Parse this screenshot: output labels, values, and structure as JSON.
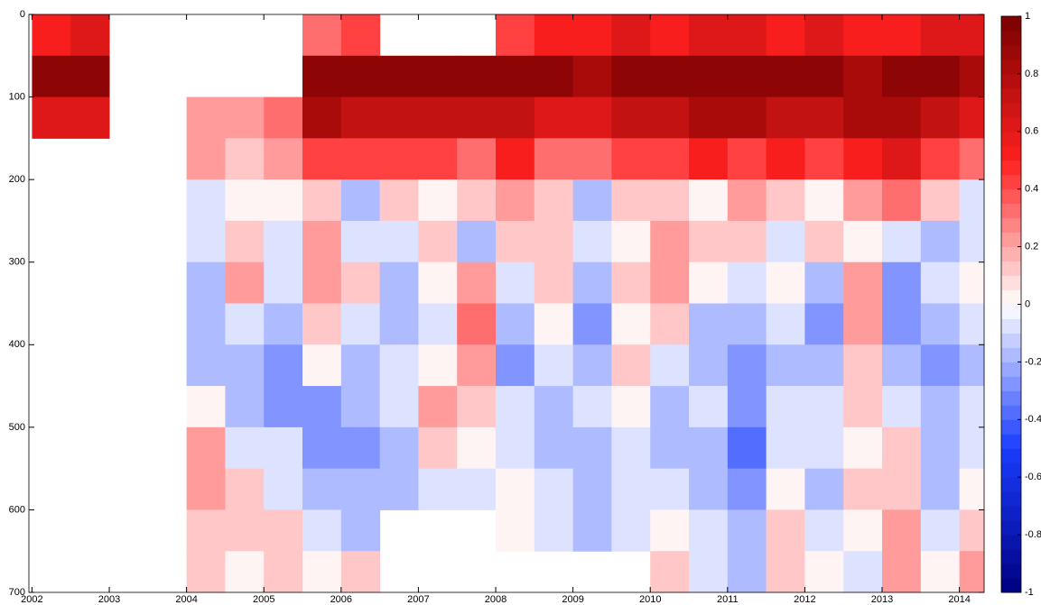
{
  "chart_data": {
    "type": "heatmap",
    "x_edges": [
      2002,
      2002.5,
      2003,
      2003.5,
      2004,
      2004.5,
      2005,
      2005.5,
      2006,
      2006.5,
      2007,
      2007.5,
      2008,
      2008.5,
      2009,
      2009.5,
      2010,
      2010.5,
      2011,
      2011.5,
      2012,
      2012.5,
      2013,
      2013.5,
      2014,
      2014.32
    ],
    "y_edges": [
      0,
      50,
      100,
      150,
      200,
      250,
      300,
      350,
      400,
      450,
      500,
      550,
      600,
      650,
      700
    ],
    "z": [
      [
        0.5,
        0.6,
        null,
        null,
        null,
        null,
        null,
        0.3,
        0.4,
        null,
        null,
        null,
        0.4,
        0.5,
        0.5,
        0.6,
        0.5,
        0.6,
        0.6,
        0.5,
        0.6,
        0.5,
        0.5,
        0.6,
        0.6
      ],
      [
        0.9,
        0.9,
        null,
        null,
        null,
        null,
        null,
        0.9,
        0.9,
        0.9,
        0.9,
        0.9,
        0.9,
        0.9,
        0.8,
        0.9,
        0.9,
        0.9,
        0.9,
        0.9,
        0.9,
        0.8,
        0.9,
        0.9,
        0.8
      ],
      [
        0.6,
        0.6,
        null,
        null,
        0.2,
        0.2,
        0.3,
        0.8,
        0.7,
        0.7,
        0.7,
        0.7,
        0.7,
        0.6,
        0.6,
        0.7,
        0.7,
        0.8,
        0.8,
        0.7,
        0.7,
        0.8,
        0.8,
        0.7,
        0.6
      ],
      [
        null,
        null,
        null,
        null,
        0.2,
        0.1,
        0.2,
        0.4,
        0.4,
        0.4,
        0.4,
        0.3,
        0.5,
        0.3,
        0.3,
        0.4,
        0.4,
        0.5,
        0.4,
        0.5,
        0.4,
        0.5,
        0.6,
        0.4,
        0.3
      ],
      [
        null,
        null,
        null,
        null,
        -0.1,
        0.0,
        0.0,
        0.1,
        -0.2,
        0.1,
        0.0,
        0.1,
        0.2,
        0.1,
        -0.2,
        0.1,
        0.1,
        0.0,
        0.2,
        0.1,
        0.0,
        0.2,
        0.3,
        0.1,
        -0.1
      ],
      [
        null,
        null,
        null,
        null,
        -0.1,
        0.1,
        -0.1,
        0.2,
        -0.1,
        -0.1,
        0.1,
        -0.2,
        0.1,
        0.1,
        -0.1,
        0.0,
        0.2,
        0.1,
        0.1,
        -0.1,
        0.1,
        0.0,
        -0.1,
        -0.2,
        -0.1
      ],
      [
        null,
        null,
        null,
        null,
        -0.2,
        0.2,
        -0.1,
        0.2,
        0.1,
        -0.2,
        0.0,
        0.2,
        -0.1,
        0.1,
        -0.2,
        0.1,
        0.2,
        0.0,
        -0.1,
        0.0,
        -0.2,
        0.2,
        -0.3,
        -0.1,
        0.0
      ],
      [
        null,
        null,
        null,
        null,
        -0.2,
        -0.1,
        -0.2,
        0.1,
        -0.1,
        -0.2,
        -0.1,
        0.3,
        -0.2,
        0.0,
        -0.3,
        0.0,
        0.1,
        -0.2,
        -0.2,
        -0.1,
        -0.3,
        0.2,
        -0.3,
        -0.2,
        -0.1
      ],
      [
        null,
        null,
        null,
        null,
        -0.2,
        -0.2,
        -0.3,
        0.0,
        -0.2,
        -0.1,
        0.0,
        0.2,
        -0.3,
        -0.1,
        -0.2,
        0.1,
        -0.1,
        -0.2,
        -0.3,
        -0.2,
        -0.2,
        0.1,
        -0.2,
        -0.3,
        -0.2
      ],
      [
        null,
        null,
        null,
        null,
        0.0,
        -0.2,
        -0.3,
        -0.3,
        -0.2,
        -0.1,
        0.2,
        0.1,
        -0.1,
        -0.2,
        -0.1,
        0.0,
        -0.2,
        -0.1,
        -0.3,
        -0.1,
        -0.1,
        0.1,
        -0.1,
        -0.2,
        -0.1
      ],
      [
        null,
        null,
        null,
        null,
        0.2,
        -0.1,
        -0.1,
        -0.3,
        -0.3,
        -0.2,
        0.1,
        0.0,
        -0.1,
        -0.2,
        -0.2,
        -0.1,
        -0.2,
        -0.2,
        -0.4,
        -0.1,
        -0.1,
        0.0,
        0.1,
        -0.2,
        -0.1
      ],
      [
        null,
        null,
        null,
        null,
        0.2,
        0.1,
        -0.1,
        -0.2,
        -0.2,
        -0.2,
        -0.1,
        -0.1,
        0.0,
        -0.1,
        -0.2,
        -0.1,
        -0.1,
        -0.2,
        -0.3,
        0.0,
        -0.2,
        0.1,
        0.1,
        -0.2,
        0.0
      ],
      [
        null,
        null,
        null,
        null,
        0.1,
        0.1,
        0.1,
        -0.1,
        -0.2,
        null,
        null,
        null,
        0.0,
        -0.1,
        -0.2,
        -0.1,
        0.0,
        -0.1,
        -0.2,
        0.1,
        -0.1,
        0.0,
        0.2,
        -0.1,
        0.1
      ],
      [
        null,
        null,
        null,
        null,
        0.1,
        0.0,
        0.1,
        0.0,
        0.1,
        null,
        null,
        null,
        null,
        null,
        null,
        null,
        0.1,
        -0.1,
        -0.2,
        0.1,
        0.0,
        -0.1,
        0.2,
        0.0,
        0.2
      ]
    ],
    "xlim": [
      2001.96,
      2014.32
    ],
    "xticks": [
      2002,
      2003,
      2004,
      2005,
      2006,
      2007,
      2008,
      2009,
      2010,
      2011,
      2012,
      2013,
      2014
    ],
    "ylim": [
      0,
      700
    ],
    "yticks": [
      0,
      100,
      200,
      300,
      400,
      500,
      600,
      700
    ],
    "y_reversed": true,
    "clim": [
      -1,
      1
    ],
    "cticks": [
      -1,
      -0.8,
      -0.6,
      -0.4,
      -0.2,
      0,
      0.2,
      0.4,
      0.6,
      0.8,
      1
    ],
    "colormap": [
      "#000080",
      "#1a3cff",
      "#ffffff",
      "#ff2020",
      "#7a0000"
    ],
    "levels": 40
  }
}
